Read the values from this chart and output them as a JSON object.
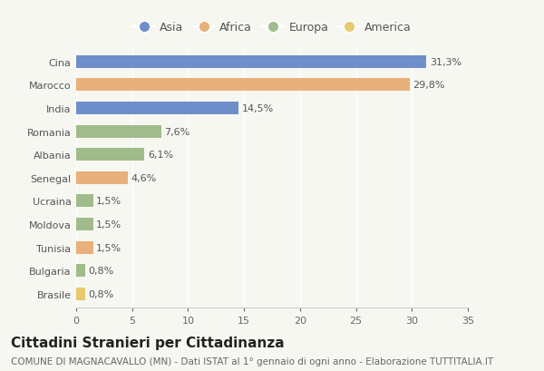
{
  "categories": [
    "Cina",
    "Marocco",
    "India",
    "Romania",
    "Albania",
    "Senegal",
    "Ucraina",
    "Moldova",
    "Tunisia",
    "Bulgaria",
    "Brasile"
  ],
  "values": [
    31.3,
    29.8,
    14.5,
    7.6,
    6.1,
    4.6,
    1.5,
    1.5,
    1.5,
    0.8,
    0.8
  ],
  "labels": [
    "31,3%",
    "29,8%",
    "14,5%",
    "7,6%",
    "6,1%",
    "4,6%",
    "1,5%",
    "1,5%",
    "1,5%",
    "0,8%",
    "0,8%"
  ],
  "colors": [
    "#6e8fc9",
    "#e8b07a",
    "#6e8fc9",
    "#9fbc8a",
    "#9fbc8a",
    "#e8b07a",
    "#9fbc8a",
    "#9fbc8a",
    "#e8b07a",
    "#9fbc8a",
    "#e8c96e"
  ],
  "legend_labels": [
    "Asia",
    "Africa",
    "Europa",
    "America"
  ],
  "legend_colors": [
    "#6e8fc9",
    "#e8b07a",
    "#9fbc8a",
    "#e8c96e"
  ],
  "title": "Cittadini Stranieri per Cittadinanza",
  "subtitle": "COMUNE DI MAGNACAVALLO (MN) - Dati ISTAT al 1° gennaio di ogni anno - Elaborazione TUTTITALIA.IT",
  "xlim": [
    0,
    35
  ],
  "xticks": [
    0,
    5,
    10,
    15,
    20,
    25,
    30,
    35
  ],
  "background_color": "#f7f7f2",
  "bar_height": 0.55,
  "title_fontsize": 11,
  "subtitle_fontsize": 7.5,
  "label_fontsize": 8,
  "tick_fontsize": 8,
  "legend_fontsize": 9
}
